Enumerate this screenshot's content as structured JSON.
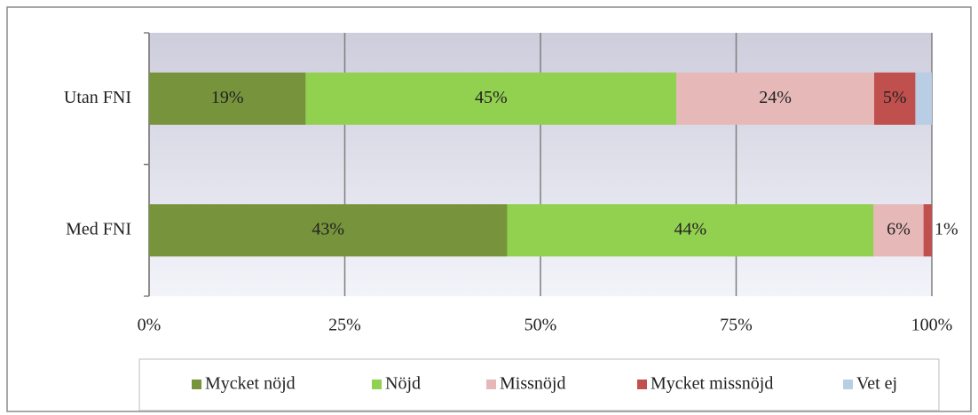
{
  "chart_data": {
    "type": "stacked-bar-horizontal",
    "stacking": "percent",
    "categories": [
      "Utan FNI",
      "Med FNI"
    ],
    "series": [
      {
        "name": "Mycket nöjd",
        "color": "#77933c",
        "values": [
          19,
          43
        ],
        "value_labels": [
          "19%",
          "43%"
        ]
      },
      {
        "name": "Nöjd",
        "color": "#92d050",
        "values": [
          45,
          44
        ],
        "value_labels": [
          "45%",
          "44%"
        ]
      },
      {
        "name": "Missnöjd",
        "color": "#e6b9b8",
        "values": [
          24,
          6
        ],
        "value_labels": [
          "24%",
          "6%"
        ]
      },
      {
        "name": "Mycket missnöjd",
        "color": "#c0504d",
        "values": [
          5,
          1
        ],
        "value_labels": [
          "5%",
          "1%"
        ]
      },
      {
        "name": "Vet ej",
        "color": "#b9cde5",
        "values": [
          2,
          0
        ],
        "value_labels": [
          null,
          null
        ]
      }
    ],
    "xlim": [
      0,
      100
    ],
    "xticks": [
      {
        "value": 0,
        "label": "0%"
      },
      {
        "value": 25,
        "label": "25%"
      },
      {
        "value": 50,
        "label": "50%"
      },
      {
        "value": 75,
        "label": "75%"
      },
      {
        "value": 100,
        "label": "100%"
      }
    ],
    "grid": true,
    "legend": "bottom"
  }
}
